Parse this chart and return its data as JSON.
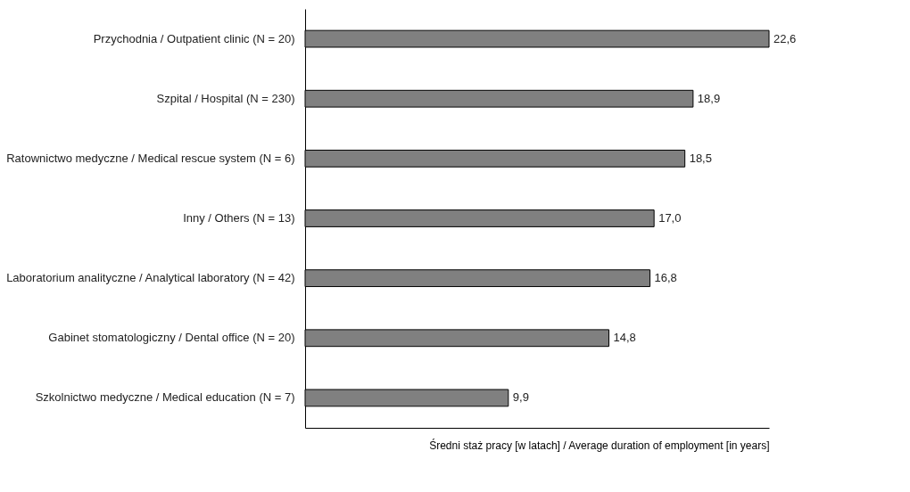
{
  "chart_data": {
    "type": "bar",
    "orientation": "horizontal",
    "xlabel": "Średni staż pracy [w latach] / Average duration of employment [in years]",
    "categories": [
      "Przychodnia / Outpatient clinic (N = 20)",
      "Szpital / Hospital (N = 230)",
      "Ratownictwo medyczne / Medical rescue system (N = 6)",
      "Inny / Others (N = 13)",
      "Laboratorium analityczne / Analytical laboratory (N = 42)",
      "Gabinet stomatologiczny / Dental office  (N = 20)",
      "Szkolnictwo medyczne / Medical education (N = 7)"
    ],
    "values": [
      22.6,
      18.9,
      18.5,
      17.0,
      16.8,
      14.8,
      9.9
    ],
    "value_labels": [
      "22,6",
      "18,9",
      "18,5",
      "17,0",
      "16,8",
      "14,8",
      "9,9"
    ],
    "color": "#808080",
    "grid": false
  }
}
